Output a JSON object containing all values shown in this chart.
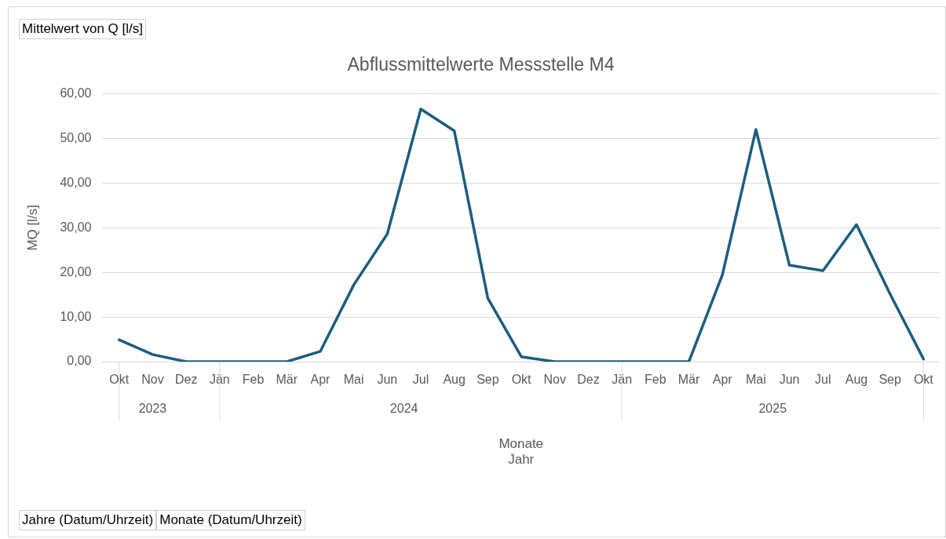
{
  "chart_data": {
    "type": "line",
    "title": "Abflussmittelwerte Messstelle M4",
    "xlabel": "Monate\nJahr",
    "ylabel": "MQ [l/s]",
    "xlim": [
      "2023-09-16",
      "2025-10-16"
    ],
    "xticks": [
      {
        "value": "2023-10",
        "label": "Okt"
      },
      {
        "value": "2023-11",
        "label": "Nov"
      },
      {
        "value": "2023-12",
        "label": "Dez"
      },
      {
        "value": "2024-01",
        "label": "Jän"
      },
      {
        "value": "2024-02",
        "label": "Feb"
      },
      {
        "value": "2024-03",
        "label": "Mär"
      },
      {
        "value": "2024-04",
        "label": "Apr"
      },
      {
        "value": "2024-05",
        "label": "Mai"
      },
      {
        "value": "2024-06",
        "label": "Jun"
      },
      {
        "value": "2024-07",
        "label": "Jul"
      },
      {
        "value": "2024-08",
        "label": "Aug"
      },
      {
        "value": "2024-09",
        "label": "Sep"
      },
      {
        "value": "2024-10",
        "label": "Okt"
      },
      {
        "value": "2024-11",
        "label": "Nov"
      },
      {
        "value": "2024-12",
        "label": "Dez"
      },
      {
        "value": "2025-01",
        "label": "Jän"
      },
      {
        "value": "2025-02",
        "label": "Feb"
      },
      {
        "value": "2025-03",
        "label": "Mär"
      },
      {
        "value": "2025-04",
        "label": "Apr"
      },
      {
        "value": "2025-05",
        "label": "Mai"
      },
      {
        "value": "2025-06",
        "label": "Jun"
      },
      {
        "value": "2025-07",
        "label": "Jul"
      },
      {
        "value": "2025-08",
        "label": "Aug"
      },
      {
        "value": "2025-09",
        "label": "Sep"
      },
      {
        "value": "2025-10",
        "label": "Okt"
      }
    ],
    "x": [
      "2023-10",
      "2023-11",
      "2023-12",
      "2024-01",
      "2024-02",
      "2024-03",
      "2024-04",
      "2024-05",
      "2024-06",
      "2024-07",
      "2024-08",
      "2024-09",
      "2024-10",
      "2024-11",
      "2024-12",
      "2025-01",
      "2025-02",
      "2025-03",
      "2025-04",
      "2025-05",
      "2025-06",
      "2025-07",
      "2025-08",
      "2025-09",
      "2025-10"
    ],
    "series": [
      {
        "color": "#1b5e80",
        "values": [
          4.9,
          1.6,
          0,
          0,
          0,
          0,
          2.3,
          17.2,
          28.6,
          56.6,
          51.7,
          14.2,
          1.1,
          0,
          0,
          0,
          0,
          0,
          19.5,
          52.0,
          21.6,
          20.4,
          30.7,
          15.2,
          0.6
        ]
      }
    ],
    "ylim": [
      0,
      60
    ],
    "yticks": [
      {
        "value": 0,
        "label": "0,00"
      },
      {
        "value": 10,
        "label": "10,00"
      },
      {
        "value": 20,
        "label": "20,00"
      },
      {
        "value": 30,
        "label": "30,00"
      },
      {
        "value": 40,
        "label": "40,00"
      },
      {
        "value": 50,
        "label": "50,00"
      },
      {
        "value": 60,
        "label": "60,00"
      }
    ],
    "grid": "y",
    "legend": false,
    "marker": "none",
    "line_style": "solid",
    "annotations": [
      "Mittelwert von Q [l/s]",
      "Jahre (Datum/Uhrzeit)",
      "Monate (Datum/Uhrzeit)",
      "2023",
      "2024",
      "2025"
    ]
  }
}
